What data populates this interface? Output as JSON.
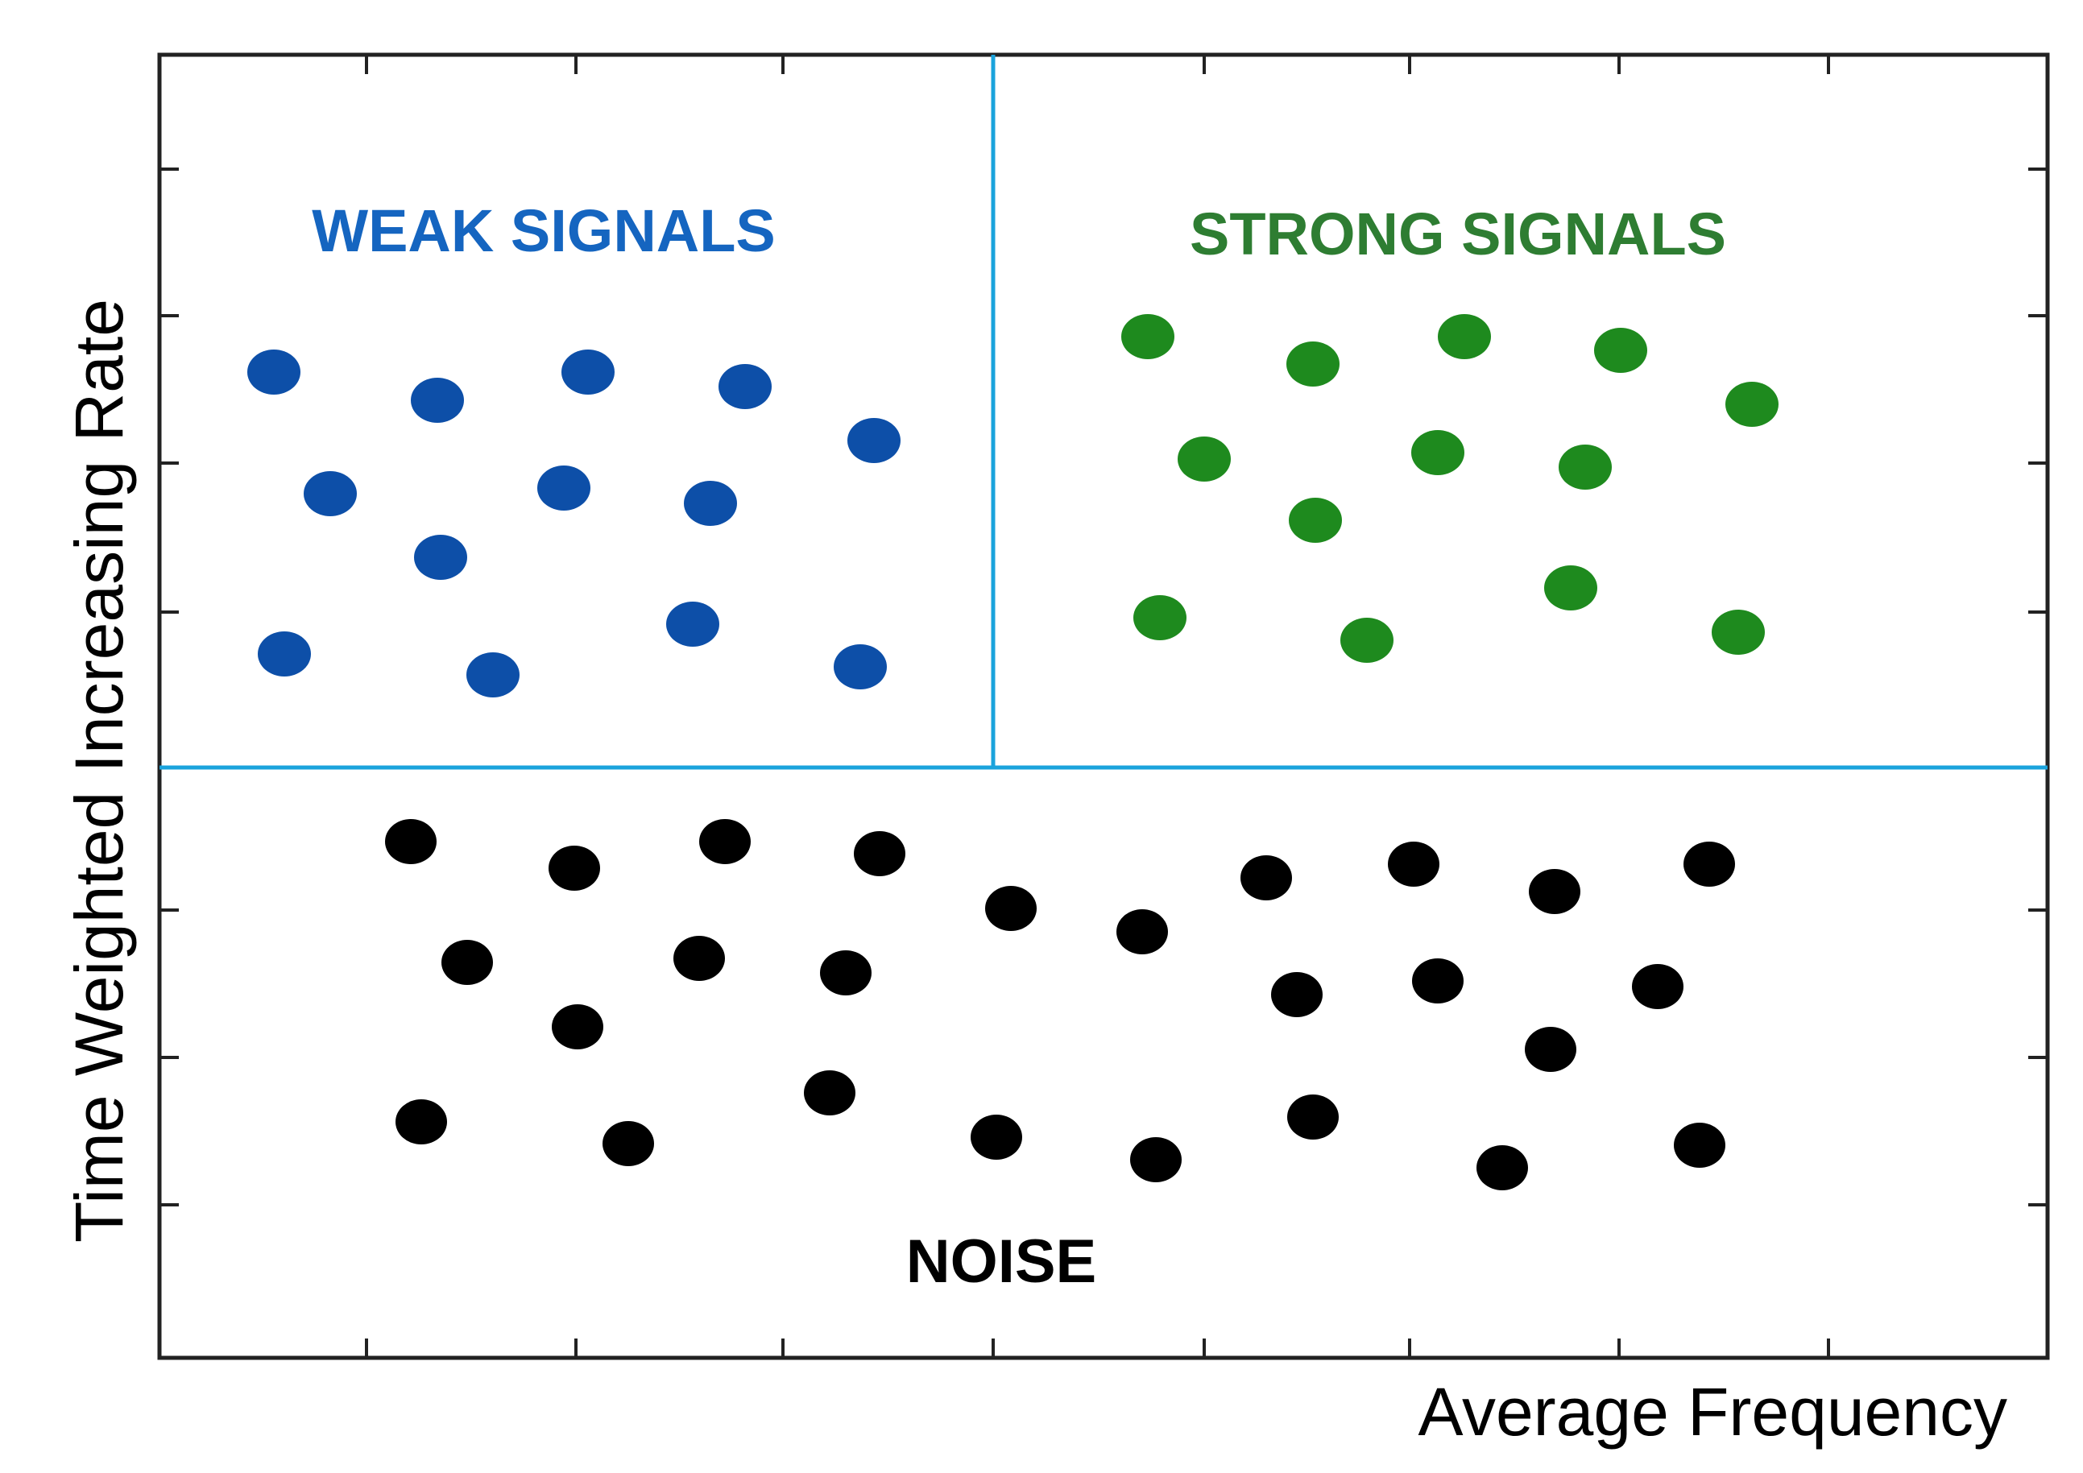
{
  "diagram": {
    "x_axis_label": "Average Frequency",
    "y_axis_label": "Time Weighted Increasing Rate",
    "regions": [
      {
        "id": "weak",
        "label": "WEAK SIGNALS",
        "color": "#0d4fa8"
      },
      {
        "id": "strong",
        "label": "STRONG SIGNALS",
        "color": "#1e8a1e"
      },
      {
        "id": "noise",
        "label": "NOISE",
        "color": "#000000"
      }
    ],
    "divider_color": "#1aa3dc",
    "frame_color": "#222222"
  }
}
